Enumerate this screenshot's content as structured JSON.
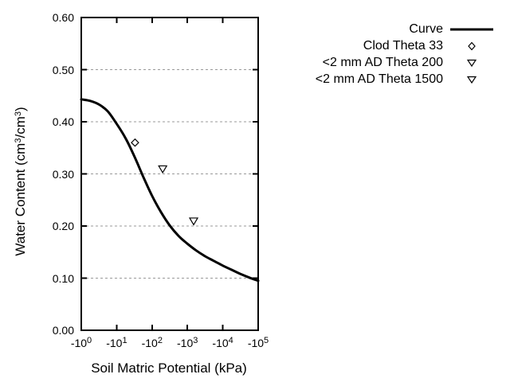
{
  "chart_data": {
    "type": "line",
    "title": "",
    "xlabel": "Soil Matric Potential (kPa)",
    "ylabel": "Water Content (cm³/cm³)",
    "ylabel_parts": [
      {
        "text": "Water Content (cm"
      },
      {
        "text": "3",
        "sup": true
      },
      {
        "text": "/cm"
      },
      {
        "text": "3",
        "sup": true
      },
      {
        "text": ")"
      }
    ],
    "x_scale": "log10 of negative kPa, decades 0 to 5",
    "xlim_decades": [
      0,
      5
    ],
    "ylim": [
      0.0,
      0.6
    ],
    "x_ticks": [
      {
        "base": "-10",
        "exp": "0",
        "decade": 0
      },
      {
        "base": "-10",
        "exp": "1",
        "decade": 1
      },
      {
        "base": "-10",
        "exp": "2",
        "decade": 2
      },
      {
        "base": "-10",
        "exp": "3",
        "decade": 3
      },
      {
        "base": "-10",
        "exp": "4",
        "decade": 4
      },
      {
        "base": "-10",
        "exp": "5",
        "decade": 5
      }
    ],
    "y_ticks": [
      "0.00",
      "0.10",
      "0.20",
      "0.30",
      "0.40",
      "0.50",
      "0.60"
    ],
    "grid": "horizontal dashed lines at 0.10 steps",
    "legend_position": "top-right outside plot",
    "series": [
      {
        "name": "Curve",
        "type": "line",
        "marker": "line-sample",
        "points_kpa_theta": [
          [
            -1,
            0.443
          ],
          [
            -1.8,
            0.44
          ],
          [
            -3.2,
            0.433
          ],
          [
            -5.6,
            0.42
          ],
          [
            -10,
            0.396
          ],
          [
            -18,
            0.368
          ],
          [
            -32,
            0.333
          ],
          [
            -56,
            0.295
          ],
          [
            -100,
            0.258
          ],
          [
            -178,
            0.227
          ],
          [
            -316,
            0.201
          ],
          [
            -562,
            0.181
          ],
          [
            -1000,
            0.166
          ],
          [
            -1778,
            0.153
          ],
          [
            -3162,
            0.142
          ],
          [
            -5623,
            0.133
          ],
          [
            -10000,
            0.124
          ],
          [
            -17783,
            0.116
          ],
          [
            -31623,
            0.108
          ],
          [
            -56234,
            0.101
          ],
          [
            -100000,
            0.095
          ]
        ]
      },
      {
        "name": "Clod Theta 33",
        "type": "scatter",
        "marker": "diamond-open",
        "points_kpa_theta": [
          [
            -33,
            0.36
          ]
        ]
      },
      {
        "name": "<2 mm AD Theta 200",
        "type": "scatter",
        "marker": "triangle-down-open",
        "points_kpa_theta": [
          [
            -200,
            0.31
          ]
        ]
      },
      {
        "name": "<2 mm AD Theta 1500",
        "type": "scatter",
        "marker": "triangle-down-open",
        "points_kpa_theta": [
          [
            -1500,
            0.21
          ]
        ]
      }
    ],
    "colors": {
      "curve": "#000000",
      "frame": "#000000",
      "grid": "#999999",
      "text": "#000000",
      "background": "#ffffff"
    }
  }
}
